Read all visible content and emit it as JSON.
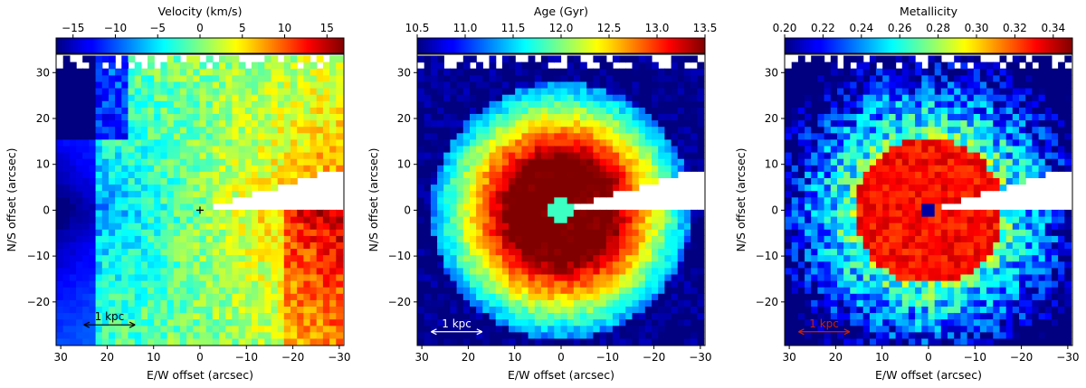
{
  "chart_data": [
    {
      "type": "heatmap",
      "title": "Velocity (km/s)",
      "xlabel": "E/W offset (arcsec)",
      "ylabel": "N/S offset (arcsec)",
      "xlim": [
        31,
        -31
      ],
      "ylim": [
        -29.5,
        34
      ],
      "xticks": [
        "30",
        "20",
        "10",
        "0",
        "−10",
        "−20",
        "−30"
      ],
      "yticks": [
        "30",
        "20",
        "10",
        "0",
        "−10",
        "−20"
      ],
      "colorbar": {
        "label": "Velocity (km/s)",
        "min": -17,
        "max": 17,
        "cmap": "jet",
        "ticks": [
          "−15",
          "−10",
          "−5",
          "0",
          "5",
          "10",
          "15"
        ],
        "tick_values": [
          -15,
          -10,
          -5,
          0,
          5,
          10,
          15
        ]
      },
      "pattern": "rotation",
      "center_marker": "+",
      "scalebar": {
        "label": "1 kpc",
        "color": "#000000",
        "x_from": 25,
        "x_to": 14,
        "y": -25
      },
      "masked_wedge": {
        "position_angle_deg": 20,
        "description": "white wedge toward upper right"
      }
    },
    {
      "type": "heatmap",
      "title": "Age (Gyr)",
      "xlabel": "E/W offset (arcsec)",
      "ylabel": "N/S offset (arcsec)",
      "xlim": [
        31,
        -31
      ],
      "ylim": [
        -29.5,
        34
      ],
      "xticks": [
        "30",
        "20",
        "10",
        "0",
        "−10",
        "−20",
        "−30"
      ],
      "yticks": [
        "30",
        "20",
        "10",
        "0",
        "−10",
        "−20"
      ],
      "colorbar": {
        "label": "Age (Gyr)",
        "min": 10.5,
        "max": 13.5,
        "cmap": "jet",
        "ticks": [
          "10.5",
          "11.0",
          "11.5",
          "12.0",
          "12.5",
          "13.0",
          "13.5"
        ],
        "tick_values": [
          10.5,
          11.0,
          11.5,
          12.0,
          12.5,
          13.0,
          13.5
        ]
      },
      "pattern": "radial_decreasing",
      "scalebar": {
        "label": "1 kpc",
        "color": "#ffffff",
        "x_from": 28,
        "x_to": 17,
        "y": -26.5
      },
      "masked_wedge": {
        "position_angle_deg": 20,
        "description": "white wedge toward upper right"
      }
    },
    {
      "type": "heatmap",
      "title": "Metallicity",
      "xlabel": "E/W offset (arcsec)",
      "ylabel": "N/S offset (arcsec)",
      "xlim": [
        31,
        -31
      ],
      "ylim": [
        -29.5,
        34
      ],
      "xticks": [
        "30",
        "20",
        "10",
        "0",
        "−10",
        "−20",
        "−30"
      ],
      "yticks": [
        "30",
        "20",
        "10",
        "0",
        "−10",
        "−20"
      ],
      "colorbar": {
        "label": "Metallicity",
        "min": 0.2,
        "max": 0.35,
        "cmap": "jet",
        "ticks": [
          "0.20",
          "0.22",
          "0.24",
          "0.26",
          "0.28",
          "0.30",
          "0.32",
          "0.34"
        ],
        "tick_values": [
          0.2,
          0.22,
          0.24,
          0.26,
          0.28,
          0.3,
          0.32,
          0.34
        ]
      },
      "pattern": "radial_core",
      "scalebar": {
        "label": "1 kpc",
        "color": "#cc2200",
        "x_from": 28,
        "x_to": 17,
        "y": -26.5
      },
      "masked_wedge": {
        "position_angle_deg": 20,
        "description": "white wedge toward upper right"
      }
    }
  ]
}
